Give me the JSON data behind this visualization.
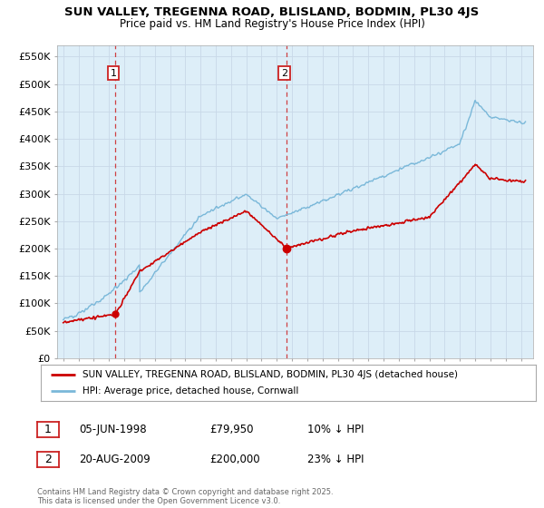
{
  "title_line1": "SUN VALLEY, TREGENNA ROAD, BLISLAND, BODMIN, PL30 4JS",
  "title_line2": "Price paid vs. HM Land Registry's House Price Index (HPI)",
  "ylim": [
    0,
    570000
  ],
  "yticks": [
    0,
    50000,
    100000,
    150000,
    200000,
    250000,
    300000,
    350000,
    400000,
    450000,
    500000,
    550000
  ],
  "ytick_labels": [
    "£0",
    "£50K",
    "£100K",
    "£150K",
    "£200K",
    "£250K",
    "£300K",
    "£350K",
    "£400K",
    "£450K",
    "£500K",
    "£550K"
  ],
  "vline1_year": 1998.43,
  "vline2_year": 2009.63,
  "marker1_year": 1998.43,
  "marker1_value": 79950,
  "marker2_year": 2009.63,
  "marker2_value": 200000,
  "sale1_label": "1",
  "sale1_date": "05-JUN-1998",
  "sale1_price": "£79,950",
  "sale1_hpi": "10% ↓ HPI",
  "sale2_label": "2",
  "sale2_date": "20-AUG-2009",
  "sale2_price": "£200,000",
  "sale2_hpi": "23% ↓ HPI",
  "legend_line1": "SUN VALLEY, TREGENNA ROAD, BLISLAND, BODMIN, PL30 4JS (detached house)",
  "legend_line2": "HPI: Average price, detached house, Cornwall",
  "hpi_color": "#7ab8d9",
  "price_color": "#cc0000",
  "vline_color": "#cc2222",
  "grid_color": "#c8d8e8",
  "plot_bg_color": "#ddeef8",
  "footnote": "Contains HM Land Registry data © Crown copyright and database right 2025.\nThis data is licensed under the Open Government Licence v3.0.",
  "bg_color": "#ffffff"
}
